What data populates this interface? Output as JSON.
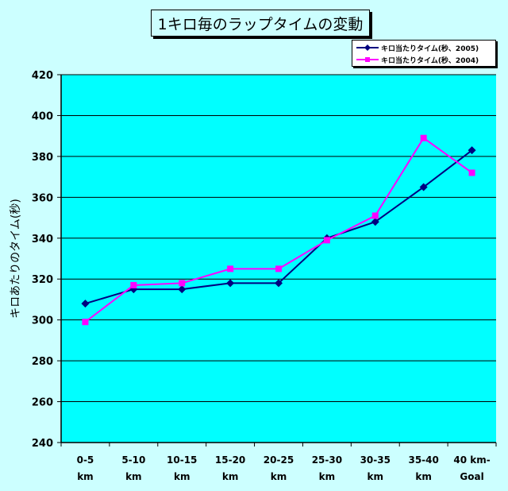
{
  "chart_data": {
    "type": "line",
    "title": "1キロ毎のラップタイムの変動",
    "ylabel": "キロあたりのタイム(秒)",
    "xlabel": "",
    "categories": [
      [
        "0-5",
        "km"
      ],
      [
        "5-10",
        "km"
      ],
      [
        "10-15",
        "km"
      ],
      [
        "15-20",
        "km"
      ],
      [
        "20-25",
        "km"
      ],
      [
        "25-30",
        "km"
      ],
      [
        "30-35",
        "km"
      ],
      [
        "35-40",
        "km"
      ],
      [
        "40 km-",
        "Goal"
      ]
    ],
    "category_labels": [
      "0-5 km",
      "5-10 km",
      "10-15 km",
      "15-20 km",
      "20-25 km",
      "25-30 km",
      "30-35 km",
      "35-40 km",
      "40 km-Goal"
    ],
    "ylim": [
      240,
      420
    ],
    "yticks": [
      240,
      260,
      280,
      300,
      320,
      340,
      360,
      380,
      400,
      420
    ],
    "grid": true,
    "legend_position": "top-right",
    "plot_background": "#00FFFF",
    "page_background": "#CCFFFF",
    "series": [
      {
        "name": "キロ当たりタイム(秒、2005)",
        "color": "#000080",
        "marker": "diamond",
        "values": [
          308,
          315,
          315,
          318,
          318,
          340,
          348,
          365,
          383
        ]
      },
      {
        "name": "キロ当たりタイム(秒、2004)",
        "color": "#FF00FF",
        "marker": "square",
        "values": [
          299,
          317,
          318,
          325,
          325,
          339,
          351,
          389,
          372
        ]
      }
    ]
  }
}
